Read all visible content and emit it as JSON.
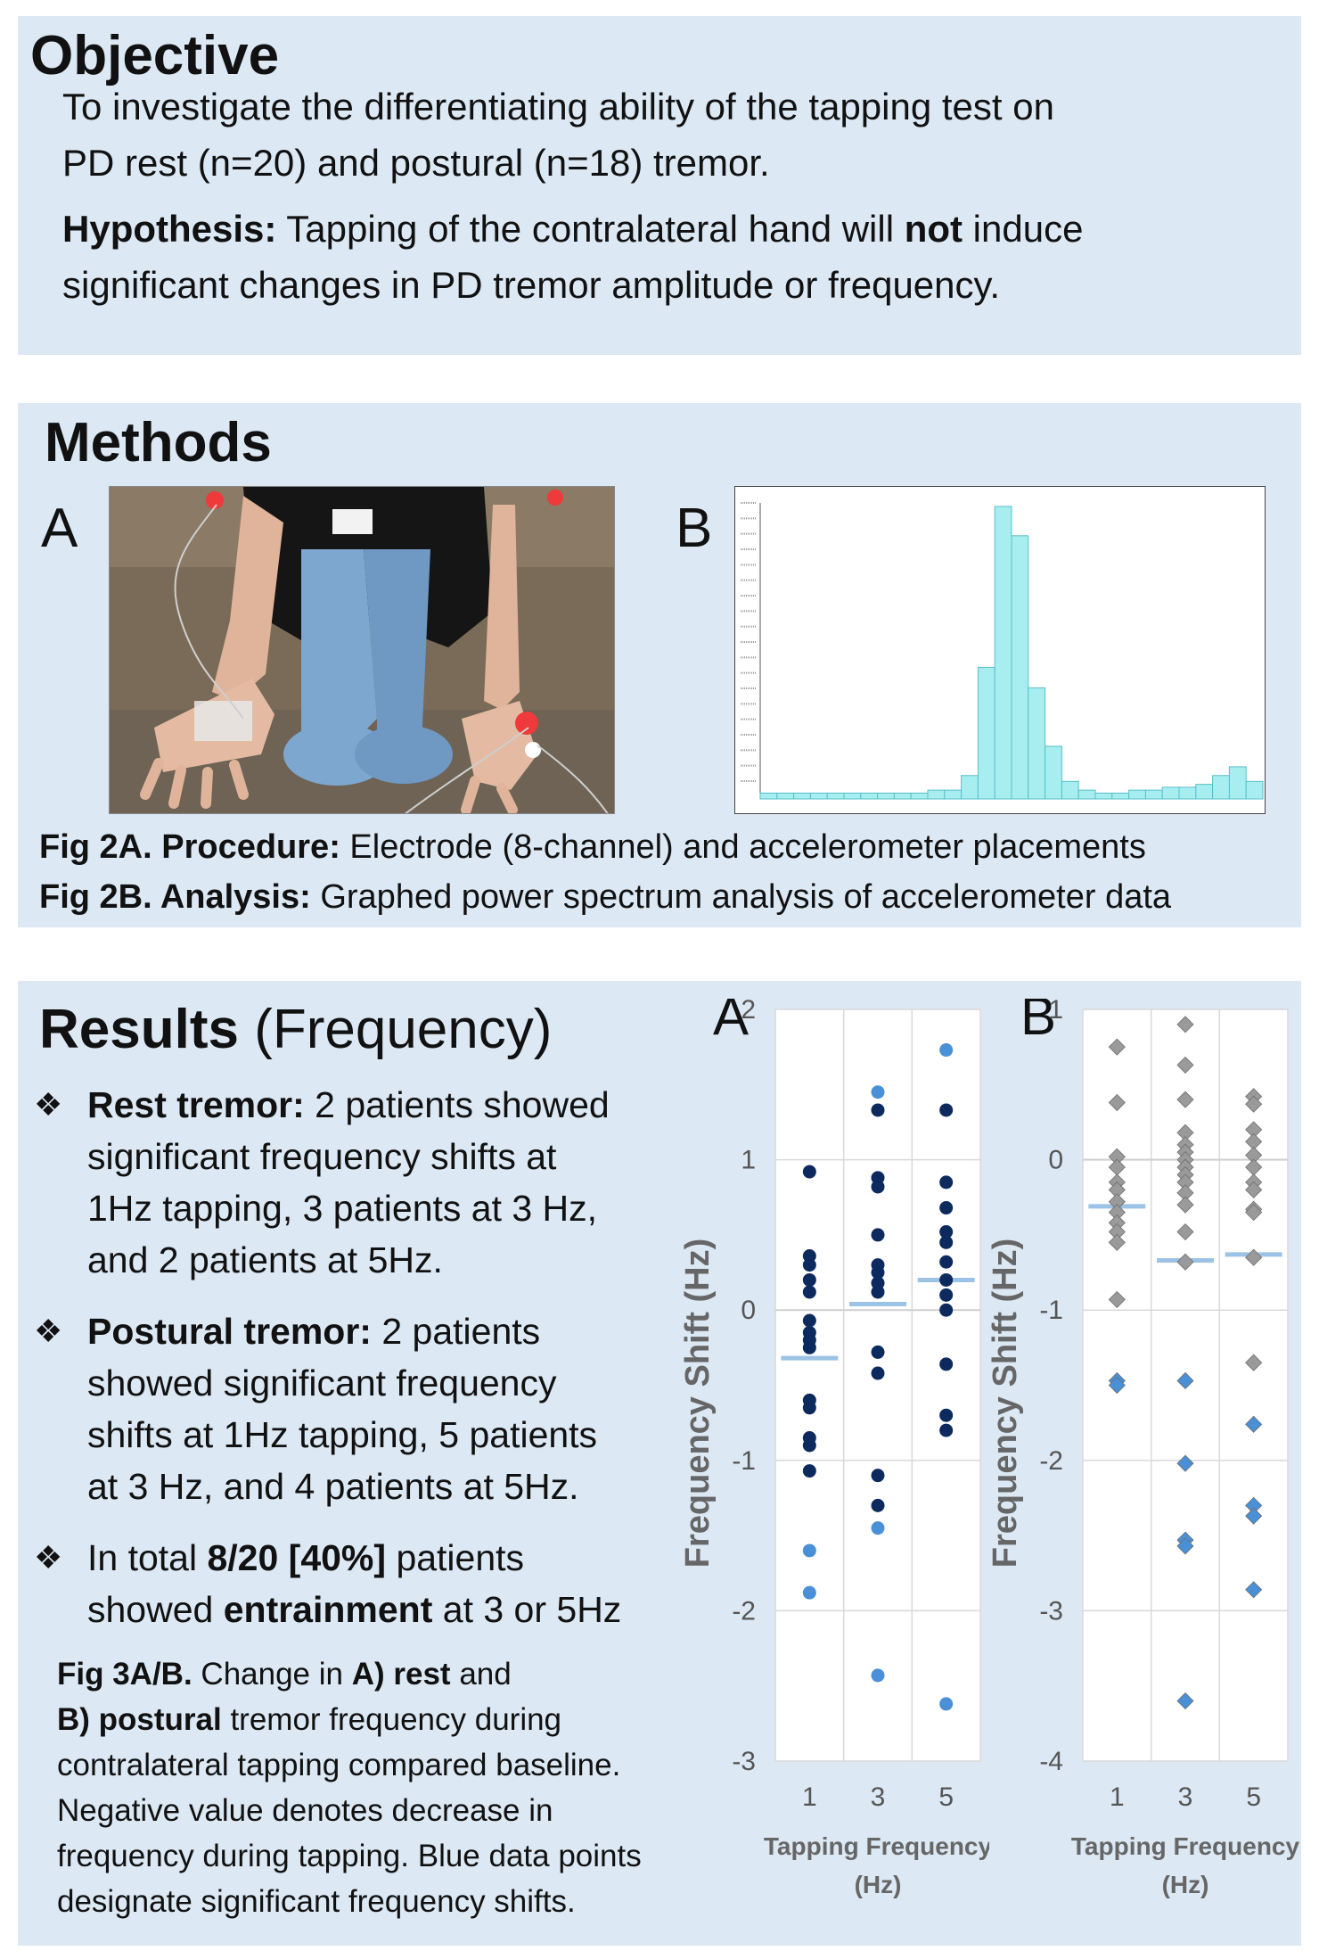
{
  "objective": {
    "title": "Objective",
    "line1": "To investigate the differentiating ability of the tapping test on",
    "line2": "PD rest (n=20) and postural (n=18) tremor.",
    "hyp_label": "Hypothesis:",
    "hyp_pre": " Tapping of the contralateral hand will ",
    "hyp_bold": "not",
    "hyp_post": " induce",
    "hyp_line2": "significant changes in PD tremor amplitude or frequency."
  },
  "methods": {
    "title": "Methods",
    "fig_a_letter": "A",
    "fig_b_letter": "B",
    "cap_a_label": "Fig 2A. Procedure:",
    "cap_a_text": " Electrode (8-channel) and accelerometer placements",
    "cap_b_label": "Fig 2B. Analysis:",
    "cap_b_text": " Graphed power spectrum analysis of accelerometer data",
    "spectrum_bars": [
      0.02,
      0.02,
      0.02,
      0.02,
      0.02,
      0.02,
      0.02,
      0.02,
      0.02,
      0.02,
      0.03,
      0.03,
      0.08,
      0.45,
      1.0,
      0.9,
      0.38,
      0.18,
      0.06,
      0.03,
      0.02,
      0.02,
      0.03,
      0.03,
      0.04,
      0.04,
      0.05,
      0.08,
      0.11,
      0.06
    ]
  },
  "results": {
    "title_bold": "Results",
    "title_light": " (Frequency)",
    "b1_label": "Rest tremor:",
    "b1_line1": " 2 patients showed",
    "b1_line2": "significant frequency shifts at",
    "b1_line3": "1Hz tapping, 3 patients at 3 Hz,",
    "b1_line4": "and 2 patients at 5Hz.",
    "b2_label": "Postural tremor:",
    "b2_line1": " 2 patients",
    "b2_line2": "showed significant frequency",
    "b2_line3": "shifts at 1Hz tapping, 5 patients",
    "b2_line4": "at 3 Hz, and 4 patients at 5Hz.",
    "b3_pre": "In total ",
    "b3_bold": "8/20 [40%]",
    "b3_post": " patients",
    "b3_line2_pre": "showed ",
    "b3_line2_bold": "entrainment",
    "b3_line2_post": " at 3 or 5Hz",
    "cap_label": "Fig 3A/B.",
    "cap_t1": " Change in ",
    "cap_a": "A) rest",
    "cap_t2": " and",
    "cap_b": "B) postural",
    "cap_t3": " tremor frequency during",
    "cap_l3": "contralateral tapping compared baseline.",
    "cap_l4": "Negative value denotes decrease in",
    "cap_l5": "frequency during tapping. Blue data points",
    "cap_l6": "designate significant frequency shifts."
  },
  "chart_data": [
    {
      "type": "scatter",
      "panel_letter": "A",
      "ylabel": "Frequency Shift (Hz)",
      "xlabel_line1": "Tapping Frequency",
      "xlabel_line2": "(Hz)",
      "categories": [
        "1",
        "3",
        "5"
      ],
      "ylim": [
        -3,
        2
      ],
      "yticks": [
        "2",
        "1",
        "0",
        "-1",
        "-2",
        "-3"
      ],
      "grid": true,
      "nonsignificant_color": "#0d2a5e",
      "significant_color": "#4a90d6",
      "mean_color": "#9cc3e6",
      "series": [
        {
          "category": "1",
          "values": [
            0.92,
            0.36,
            0.3,
            0.2,
            0.12,
            -0.07,
            -0.15,
            -0.2,
            -0.25,
            -0.6,
            -0.65,
            -0.85,
            -0.9,
            -1.07
          ],
          "significant": [
            -1.6,
            -1.88
          ],
          "mean": -0.32
        },
        {
          "category": "3",
          "values": [
            1.33,
            0.88,
            0.82,
            0.5,
            0.3,
            0.25,
            0.18,
            0.12,
            -0.28,
            -0.42,
            -1.1,
            -1.3
          ],
          "significant": [
            1.45,
            -1.45,
            -2.43
          ],
          "mean": 0.04
        },
        {
          "category": "5",
          "values": [
            1.33,
            0.85,
            0.68,
            0.52,
            0.45,
            0.32,
            0.2,
            0.1,
            0.0,
            -0.36,
            -0.7,
            -0.8
          ],
          "significant": [
            1.73,
            -2.62
          ],
          "mean": 0.2
        }
      ]
    },
    {
      "type": "scatter",
      "panel_letter": "B",
      "ylabel": "Frequency Shift (Hz)",
      "xlabel_line1": "Tapping Frequency",
      "xlabel_line2": "(Hz)",
      "categories": [
        "1",
        "3",
        "5"
      ],
      "ylim": [
        -4,
        1
      ],
      "yticks": [
        "1",
        "0",
        "-1",
        "-2",
        "-3",
        "-4"
      ],
      "grid": true,
      "nonsignificant_color": "#9a9a9a",
      "significant_color": "#4a90d6",
      "mean_color": "#9cc3e6",
      "series": [
        {
          "category": "1",
          "values": [
            0.75,
            0.38,
            0.02,
            -0.05,
            -0.15,
            -0.2,
            -0.28,
            -0.35,
            -0.42,
            -0.48,
            -0.55,
            -0.93
          ],
          "significant": [
            -1.47,
            -1.5
          ],
          "mean": -0.31
        },
        {
          "category": "3",
          "values": [
            0.9,
            0.63,
            0.4,
            0.18,
            0.1,
            0.05,
            0.0,
            -0.05,
            -0.1,
            -0.15,
            -0.22,
            -0.3,
            -0.48,
            -0.68
          ],
          "significant": [
            -1.47,
            -2.02,
            -2.53,
            -2.57,
            -3.6
          ],
          "mean": -0.67
        },
        {
          "category": "5",
          "values": [
            0.42,
            0.37,
            0.2,
            0.12,
            0.03,
            -0.05,
            -0.15,
            -0.2,
            -0.33,
            -0.35,
            -0.65,
            -1.35
          ],
          "significant": [
            -1.76,
            -2.3,
            -2.37,
            -2.86
          ],
          "mean": -0.63
        }
      ]
    }
  ]
}
